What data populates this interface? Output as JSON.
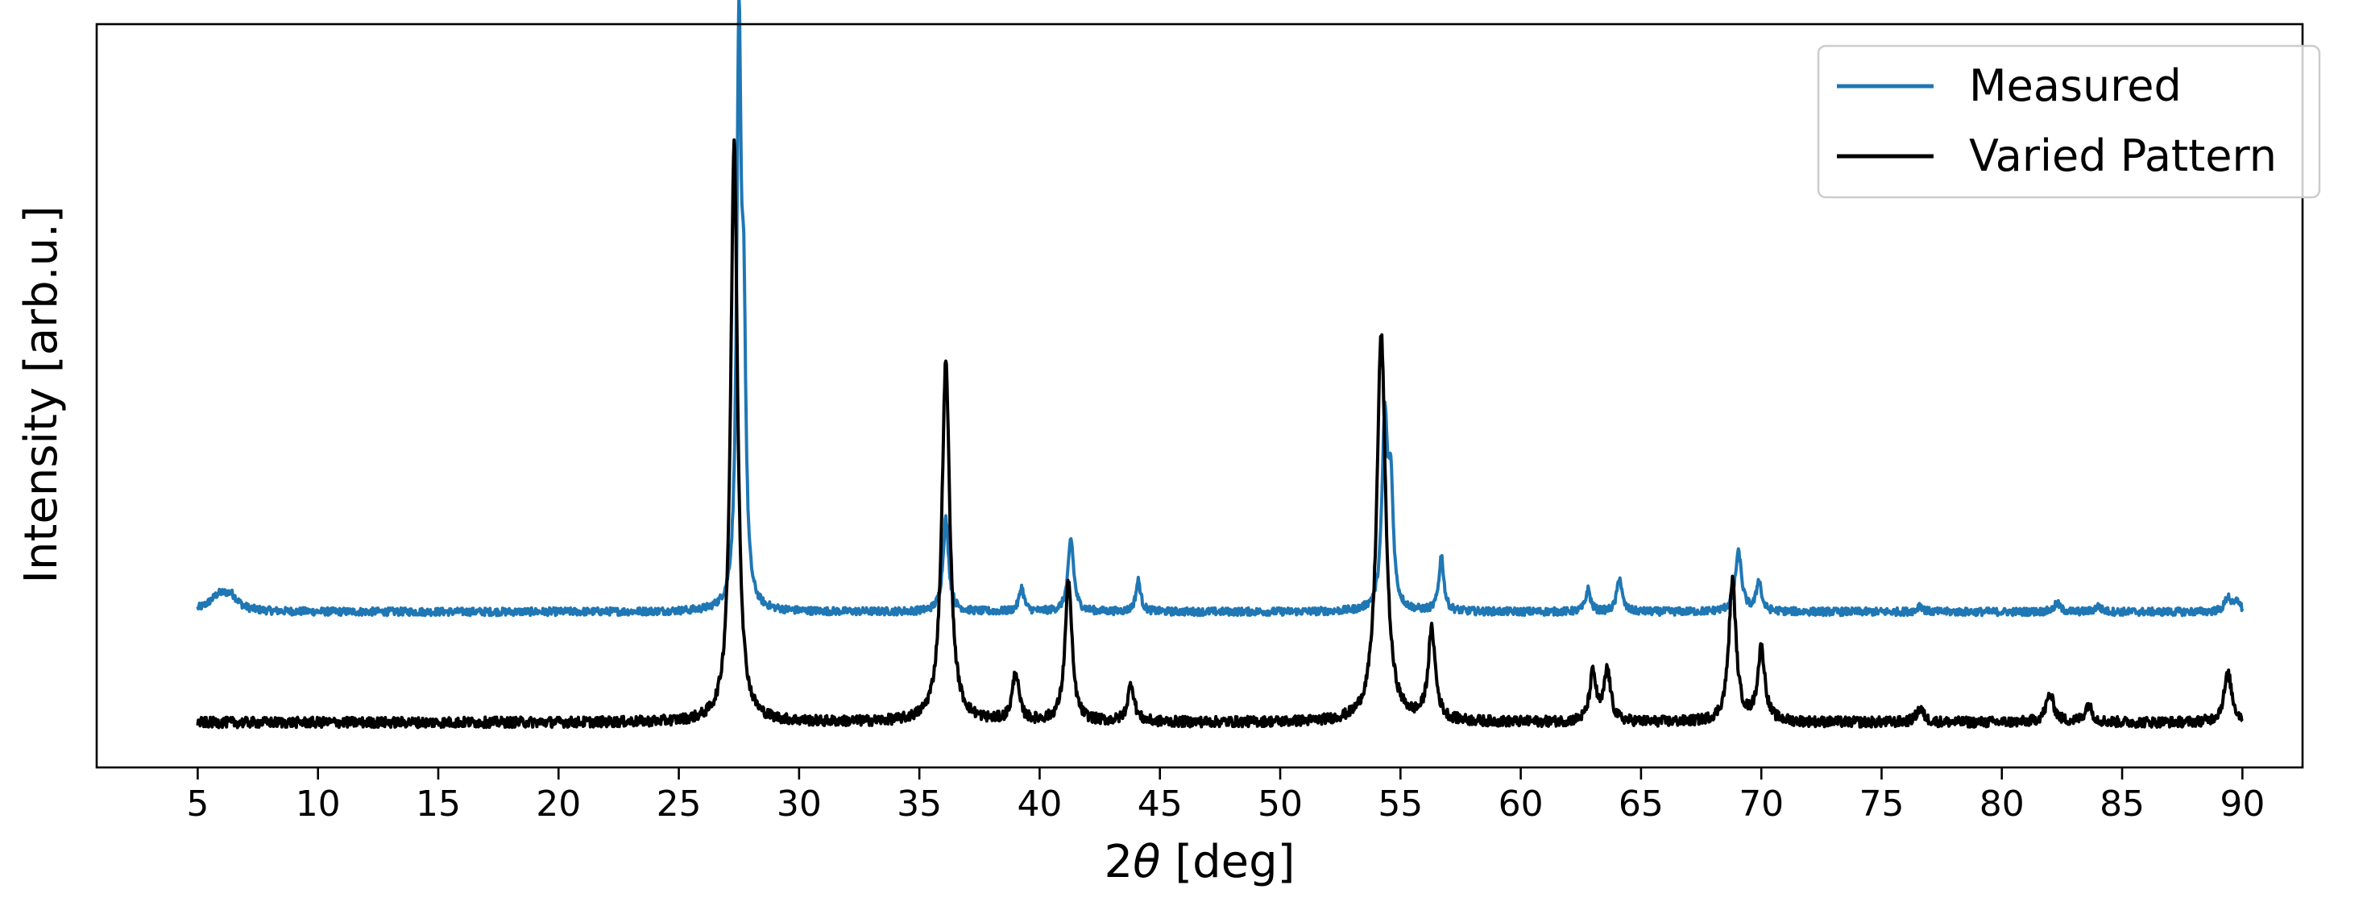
{
  "chart_data": {
    "type": "line",
    "title": "",
    "xlabel_prefix": "2",
    "xlabel_symbol": "θ",
    "xlabel_suffix": " [deg]",
    "ylabel": "Intensity [arb.u.]",
    "xlim": [
      0.8,
      92.5
    ],
    "ylim": [
      0,
      10.75
    ],
    "x_ticks": [
      5,
      10,
      15,
      20,
      25,
      30,
      35,
      40,
      45,
      50,
      55,
      60,
      65,
      70,
      75,
      80,
      85,
      90
    ],
    "x_range": [
      5,
      90
    ],
    "y_ticks_shown": false,
    "grid": false,
    "legend_position": "upper-right",
    "series": [
      {
        "name": "Measured",
        "color": "#1f77b4",
        "baseline": 2.25,
        "peaks": [
          [
            5.9,
            0.22,
            0.5
          ],
          [
            6.4,
            0.16,
            0.35
          ],
          [
            27.5,
            8.15,
            0.11
          ],
          [
            27.7,
            3.6,
            0.1
          ],
          [
            36.1,
            1.35,
            0.14
          ],
          [
            39.25,
            0.35,
            0.12
          ],
          [
            41.3,
            1.05,
            0.14
          ],
          [
            44.1,
            0.45,
            0.12
          ],
          [
            54.35,
            2.7,
            0.14
          ],
          [
            54.6,
            1.6,
            0.12
          ],
          [
            56.7,
            0.8,
            0.12
          ],
          [
            62.8,
            0.32,
            0.12
          ],
          [
            64.1,
            0.5,
            0.12
          ],
          [
            69.05,
            0.85,
            0.16
          ],
          [
            69.9,
            0.45,
            0.12
          ],
          [
            76.6,
            0.1,
            0.12
          ],
          [
            82.3,
            0.12,
            0.15
          ],
          [
            84.0,
            0.08,
            0.15
          ],
          [
            89.4,
            0.22,
            0.15
          ],
          [
            89.8,
            0.15,
            0.12
          ]
        ]
      },
      {
        "name": "Varied Pattern",
        "color": "#000000",
        "baseline": 0.65,
        "peaks": [
          [
            27.3,
            8.4,
            0.17
          ],
          [
            36.1,
            5.2,
            0.2
          ],
          [
            39.0,
            0.7,
            0.16
          ],
          [
            41.2,
            2.05,
            0.17
          ],
          [
            43.8,
            0.55,
            0.16
          ],
          [
            54.2,
            5.6,
            0.22
          ],
          [
            56.3,
            1.3,
            0.18
          ],
          [
            63.0,
            0.7,
            0.16
          ],
          [
            63.6,
            0.75,
            0.16
          ],
          [
            68.8,
            2.05,
            0.18
          ],
          [
            70.0,
            1.05,
            0.18
          ],
          [
            76.6,
            0.2,
            0.18
          ],
          [
            82.0,
            0.4,
            0.2
          ],
          [
            83.6,
            0.25,
            0.18
          ],
          [
            89.4,
            0.7,
            0.2
          ]
        ]
      }
    ]
  }
}
